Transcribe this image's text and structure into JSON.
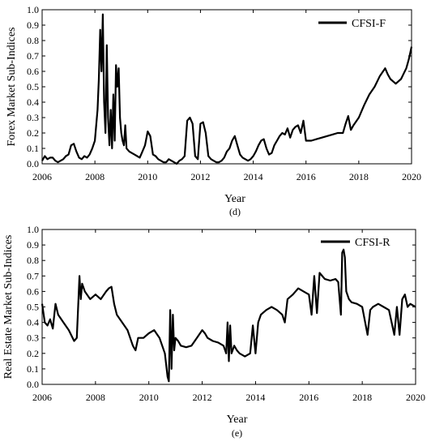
{
  "chart_data": [
    {
      "type": "line",
      "panel_label": "(d)",
      "xlabel": "Year",
      "ylabel": "Forex Market Sub-Indices",
      "xlim": [
        2006,
        2020
      ],
      "ylim": [
        0,
        1.0
      ],
      "x_ticks": [
        "2006",
        "2008",
        "2010",
        "2012",
        "2014",
        "2016",
        "2018",
        "2020"
      ],
      "y_ticks": [
        "0.0",
        "0.1",
        "0.2",
        "0.3",
        "0.4",
        "0.5",
        "0.6",
        "0.7",
        "0.8",
        "0.9",
        "1.0"
      ],
      "grid": false,
      "legend": {
        "position": "top-right",
        "entries": [
          "CFSI-F"
        ]
      },
      "series": [
        {
          "name": "CFSI-F",
          "color": "#000000",
          "x": [
            2006.0,
            2006.1,
            2006.2,
            2006.3,
            2006.4,
            2006.5,
            2006.6,
            2006.7,
            2006.8,
            2006.9,
            2007.0,
            2007.1,
            2007.2,
            2007.3,
            2007.4,
            2007.5,
            2007.6,
            2007.7,
            2007.8,
            2007.9,
            2008.0,
            2008.1,
            2008.15,
            2008.2,
            2008.25,
            2008.3,
            2008.35,
            2008.4,
            2008.45,
            2008.5,
            2008.55,
            2008.6,
            2008.65,
            2008.7,
            2008.75,
            2008.8,
            2008.85,
            2008.9,
            2008.95,
            2009.0,
            2009.05,
            2009.1,
            2009.15,
            2009.2,
            2009.3,
            2009.4,
            2009.5,
            2009.6,
            2009.7,
            2009.8,
            2009.9,
            2010.0,
            2010.1,
            2010.2,
            2010.3,
            2010.4,
            2010.5,
            2010.6,
            2010.7,
            2010.8,
            2010.9,
            2011.0,
            2011.1,
            2011.2,
            2011.3,
            2011.4,
            2011.5,
            2011.6,
            2011.7,
            2011.8,
            2011.9,
            2012.0,
            2012.1,
            2012.2,
            2012.3,
            2012.4,
            2012.5,
            2012.6,
            2012.7,
            2012.8,
            2012.9,
            2013.0,
            2013.1,
            2013.2,
            2013.3,
            2013.4,
            2013.5,
            2013.6,
            2013.7,
            2013.8,
            2013.9,
            2014.0,
            2014.1,
            2014.2,
            2014.3,
            2014.4,
            2014.5,
            2014.6,
            2014.7,
            2014.8,
            2014.9,
            2015.0,
            2015.1,
            2015.2,
            2015.3,
            2015.4,
            2015.5,
            2015.6,
            2015.7,
            2015.8,
            2015.9,
            2016.0,
            2016.2,
            2016.4,
            2016.6,
            2016.8,
            2017.0,
            2017.2,
            2017.4,
            2017.5,
            2017.6,
            2017.7,
            2017.8,
            2018.0,
            2018.2,
            2018.4,
            2018.6,
            2018.8,
            2019.0,
            2019.1,
            2019.2,
            2019.4,
            2019.6,
            2019.8,
            2019.9,
            2020.0
          ],
          "y": [
            0.02,
            0.05,
            0.03,
            0.04,
            0.04,
            0.02,
            0.01,
            0.02,
            0.03,
            0.05,
            0.06,
            0.12,
            0.13,
            0.08,
            0.04,
            0.03,
            0.05,
            0.04,
            0.06,
            0.1,
            0.15,
            0.35,
            0.55,
            0.87,
            0.6,
            0.97,
            0.4,
            0.2,
            0.77,
            0.3,
            0.12,
            0.35,
            0.1,
            0.45,
            0.15,
            0.64,
            0.5,
            0.62,
            0.3,
            0.2,
            0.15,
            0.12,
            0.25,
            0.1,
            0.08,
            0.07,
            0.06,
            0.05,
            0.04,
            0.08,
            0.12,
            0.21,
            0.18,
            0.06,
            0.05,
            0.03,
            0.02,
            0.01,
            0.01,
            0.03,
            0.02,
            0.01,
            0.0,
            0.02,
            0.03,
            0.05,
            0.28,
            0.3,
            0.26,
            0.05,
            0.03,
            0.26,
            0.27,
            0.2,
            0.05,
            0.03,
            0.02,
            0.01,
            0.01,
            0.02,
            0.04,
            0.08,
            0.1,
            0.15,
            0.18,
            0.12,
            0.06,
            0.04,
            0.03,
            0.02,
            0.03,
            0.05,
            0.08,
            0.12,
            0.15,
            0.16,
            0.1,
            0.06,
            0.07,
            0.12,
            0.15,
            0.18,
            0.2,
            0.19,
            0.23,
            0.17,
            0.22,
            0.24,
            0.25,
            0.2,
            0.28,
            0.15,
            0.15,
            0.16,
            0.17,
            0.18,
            0.19,
            0.2,
            0.2,
            0.26,
            0.31,
            0.22,
            0.25,
            0.3,
            0.38,
            0.45,
            0.5,
            0.57,
            0.62,
            0.58,
            0.55,
            0.52,
            0.55,
            0.62,
            0.68,
            0.76
          ]
        }
      ]
    },
    {
      "type": "line",
      "panel_label": "(e)",
      "xlabel": "Year",
      "ylabel": "Real Estate Market Sub-Indices",
      "xlim": [
        2006,
        2020
      ],
      "ylim": [
        0,
        1.0
      ],
      "x_ticks": [
        "2006",
        "2008",
        "2010",
        "2012",
        "2014",
        "2016",
        "2018",
        "2020"
      ],
      "y_ticks": [
        "0.0",
        "0.1",
        "0.2",
        "0.3",
        "0.4",
        "0.5",
        "0.6",
        "0.7",
        "0.8",
        "0.9",
        "1.0"
      ],
      "grid": false,
      "legend": {
        "position": "top-right",
        "entries": [
          "CFSI-R"
        ]
      },
      "series": [
        {
          "name": "CFSI-R",
          "color": "#000000",
          "x": [
            2006.0,
            2006.1,
            2006.2,
            2006.3,
            2006.4,
            2006.5,
            2006.6,
            2006.8,
            2007.0,
            2007.2,
            2007.3,
            2007.4,
            2007.45,
            2007.5,
            2007.6,
            2007.8,
            2008.0,
            2008.2,
            2008.4,
            2008.5,
            2008.6,
            2008.7,
            2008.8,
            2009.0,
            2009.2,
            2009.4,
            2009.5,
            2009.6,
            2009.8,
            2010.0,
            2010.2,
            2010.4,
            2010.6,
            2010.7,
            2010.75,
            2010.8,
            2010.85,
            2010.9,
            2010.95,
            2011.0,
            2011.1,
            2011.2,
            2011.4,
            2011.6,
            2011.8,
            2012.0,
            2012.1,
            2012.2,
            2012.4,
            2012.6,
            2012.8,
            2012.9,
            2012.95,
            2013.0,
            2013.05,
            2013.1,
            2013.2,
            2013.3,
            2013.4,
            2013.6,
            2013.8,
            2013.9,
            2014.0,
            2014.1,
            2014.2,
            2014.4,
            2014.6,
            2014.8,
            2015.0,
            2015.1,
            2015.2,
            2015.4,
            2015.6,
            2015.8,
            2016.0,
            2016.1,
            2016.2,
            2016.3,
            2016.4,
            2016.6,
            2016.8,
            2017.0,
            2017.1,
            2017.2,
            2017.25,
            2017.3,
            2017.35,
            2017.4,
            2017.5,
            2017.6,
            2017.8,
            2018.0,
            2018.2,
            2018.3,
            2018.4,
            2018.6,
            2018.8,
            2019.0,
            2019.2,
            2019.3,
            2019.4,
            2019.5,
            2019.6,
            2019.7,
            2019.8,
            2020.0
          ],
          "y": [
            0.52,
            0.4,
            0.38,
            0.42,
            0.36,
            0.52,
            0.45,
            0.4,
            0.35,
            0.28,
            0.3,
            0.7,
            0.55,
            0.65,
            0.6,
            0.55,
            0.58,
            0.55,
            0.6,
            0.62,
            0.63,
            0.52,
            0.45,
            0.4,
            0.35,
            0.25,
            0.22,
            0.3,
            0.3,
            0.33,
            0.35,
            0.3,
            0.2,
            0.05,
            0.02,
            0.48,
            0.1,
            0.45,
            0.22,
            0.3,
            0.28,
            0.25,
            0.24,
            0.25,
            0.3,
            0.35,
            0.33,
            0.3,
            0.28,
            0.27,
            0.25,
            0.2,
            0.4,
            0.15,
            0.38,
            0.2,
            0.25,
            0.22,
            0.2,
            0.18,
            0.2,
            0.38,
            0.2,
            0.4,
            0.45,
            0.48,
            0.5,
            0.48,
            0.45,
            0.4,
            0.55,
            0.58,
            0.62,
            0.6,
            0.58,
            0.45,
            0.7,
            0.46,
            0.72,
            0.68,
            0.67,
            0.68,
            0.66,
            0.45,
            0.85,
            0.87,
            0.82,
            0.6,
            0.55,
            0.53,
            0.52,
            0.5,
            0.32,
            0.48,
            0.5,
            0.52,
            0.5,
            0.48,
            0.32,
            0.5,
            0.32,
            0.55,
            0.58,
            0.5,
            0.52,
            0.5
          ]
        }
      ]
    }
  ]
}
